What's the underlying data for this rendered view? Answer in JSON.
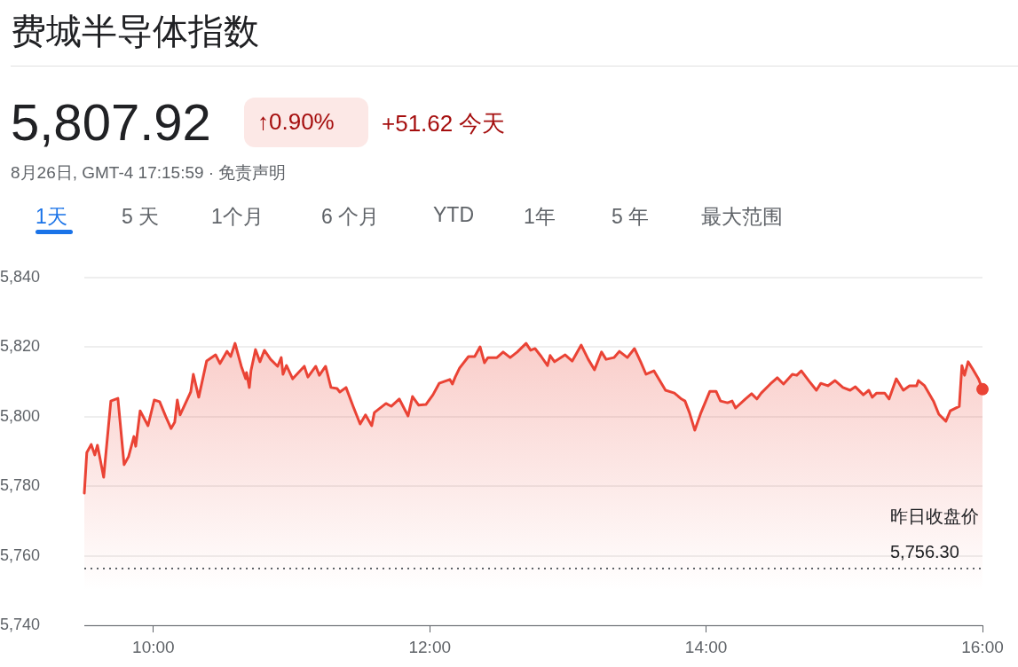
{
  "chart_data": {
    "type": "area",
    "title": "费城半导体指数",
    "annotations": [
      "5,807.92",
      "↑0.90%",
      "+51.62 今天",
      "8月26日, GMT-4 17:15:59 · 免责声明",
      "1天",
      "5 天",
      "1个月",
      "6 个月",
      "YTD",
      "1年",
      "5 年",
      "最大范围"
    ],
    "x": [
      9.5,
      9.518,
      9.55,
      9.576,
      9.595,
      9.64,
      9.692,
      9.743,
      9.788,
      9.82,
      9.859,
      9.872,
      9.904,
      9.961,
      10.006,
      10.045,
      10.09,
      10.128,
      10.154,
      10.173,
      10.193,
      10.27,
      10.289,
      10.328,
      10.385,
      10.45,
      10.482,
      10.533,
      10.559,
      10.591,
      10.636,
      10.668,
      10.674,
      10.694,
      10.706,
      10.739,
      10.771,
      10.803,
      10.848,
      10.899,
      10.925,
      10.938,
      10.963,
      11.008,
      11.092,
      11.118,
      11.175,
      11.201,
      11.246,
      11.285,
      11.329,
      11.349,
      11.394,
      11.445,
      11.496,
      11.535,
      11.58,
      11.599,
      11.683,
      11.721,
      11.779,
      11.843,
      11.875,
      11.92,
      11.972,
      12.023,
      12.068,
      12.145,
      12.164,
      12.184,
      12.216,
      12.28,
      12.325,
      12.364,
      12.396,
      12.421,
      12.486,
      12.531,
      12.582,
      12.633,
      12.697,
      12.73,
      12.762,
      12.807,
      12.852,
      12.871,
      12.903,
      12.98,
      13.031,
      13.096,
      13.147,
      13.192,
      13.243,
      13.276,
      13.333,
      13.372,
      13.43,
      13.481,
      13.526,
      13.565,
      13.622,
      13.706,
      13.77,
      13.821,
      13.847,
      13.879,
      13.918,
      13.963,
      14.027,
      14.072,
      14.104,
      14.155,
      14.188,
      14.213,
      14.284,
      14.329,
      14.367,
      14.399,
      14.464,
      14.515,
      14.56,
      14.624,
      14.656,
      14.689,
      14.746,
      14.798,
      14.83,
      14.881,
      14.933,
      14.99,
      15.042,
      15.08,
      15.138,
      15.177,
      15.202,
      15.234,
      15.292,
      15.324,
      15.376,
      15.427,
      15.472,
      15.523,
      15.536,
      15.581,
      15.645,
      15.684,
      15.735,
      15.767,
      15.832,
      15.851,
      15.87,
      15.896,
      15.928,
      15.973,
      16
    ],
    "values": [
      5778,
      5789.7,
      5792,
      5789,
      5791.8,
      5782.6,
      5804.5,
      5805.3,
      5786.2,
      5788.5,
      5794.3,
      5791.5,
      5801.7,
      5797.4,
      5804.8,
      5804.3,
      5800,
      5796.6,
      5798.4,
      5804.8,
      5800.5,
      5807.1,
      5812.2,
      5805.6,
      5816,
      5817.8,
      5815.3,
      5818.8,
      5817.3,
      5821.1,
      5814.5,
      5810.9,
      5812.7,
      5808.4,
      5813.2,
      5819.3,
      5815.8,
      5819.1,
      5816.5,
      5814.5,
      5817,
      5812.2,
      5814.7,
      5810.9,
      5814.5,
      5811.4,
      5814.5,
      5811.9,
      5814.5,
      5808.4,
      5808.1,
      5807.1,
      5808.4,
      5803,
      5797.9,
      5800.5,
      5797.4,
      5801.2,
      5803.8,
      5803,
      5805.1,
      5800.2,
      5805.8,
      5803.3,
      5803.5,
      5806.3,
      5809.6,
      5810.7,
      5809.4,
      5811.4,
      5814,
      5817.3,
      5817.3,
      5820.1,
      5815.5,
      5817,
      5817,
      5818.6,
      5817,
      5818.6,
      5821.1,
      5819.1,
      5819.6,
      5817.3,
      5814.7,
      5817.6,
      5815.8,
      5817.8,
      5816,
      5820.6,
      5816.5,
      5813.5,
      5818.6,
      5816.5,
      5817,
      5818.8,
      5817,
      5819.6,
      5815.8,
      5812.2,
      5813.2,
      5807.6,
      5806.8,
      5805.1,
      5804.5,
      5801.2,
      5796.1,
      5801.2,
      5807.3,
      5807.3,
      5804.5,
      5804,
      5804.5,
      5802.5,
      5805.1,
      5806.6,
      5805.1,
      5806.8,
      5809.4,
      5811.2,
      5809.4,
      5812.2,
      5811.9,
      5813.2,
      5810.2,
      5807.6,
      5809.6,
      5808.9,
      5810.4,
      5808.4,
      5807.6,
      5808.6,
      5806.3,
      5807.6,
      5805.6,
      5806.8,
      5806.8,
      5805.1,
      5810.9,
      5807.6,
      5808.9,
      5808.9,
      5810.4,
      5808.9,
      5804.5,
      5800.7,
      5798.7,
      5801.7,
      5803,
      5814.7,
      5811.9,
      5815.8,
      5813.8,
      5810.7,
      5807.9
    ],
    "color": "#ea4335",
    "xlim": [
      9.5,
      16
    ],
    "xticks": [
      {
        "value": 10,
        "label": "10:00"
      },
      {
        "value": 12,
        "label": "12:00"
      },
      {
        "value": 14,
        "label": "14:00"
      },
      {
        "value": 16,
        "label": "16:00"
      }
    ],
    "ylim": [
      5740,
      5840
    ],
    "yticks": [
      {
        "value": 5740,
        "label": "5,740"
      },
      {
        "value": 5760,
        "label": "5,760"
      },
      {
        "value": 5780,
        "label": "5,780"
      },
      {
        "value": 5800,
        "label": "5,800"
      },
      {
        "value": 5820,
        "label": "5,820"
      },
      {
        "value": 5840,
        "label": "5,840"
      }
    ],
    "grid": "y",
    "legend": false,
    "marker": "none",
    "line_style": "solid",
    "ref_lines": [
      {
        "axis": "y",
        "value": 5756.3,
        "label": "昨日收盘价 5,756.30",
        "color": "#5f6368",
        "line_style": "dotted"
      }
    ]
  }
}
